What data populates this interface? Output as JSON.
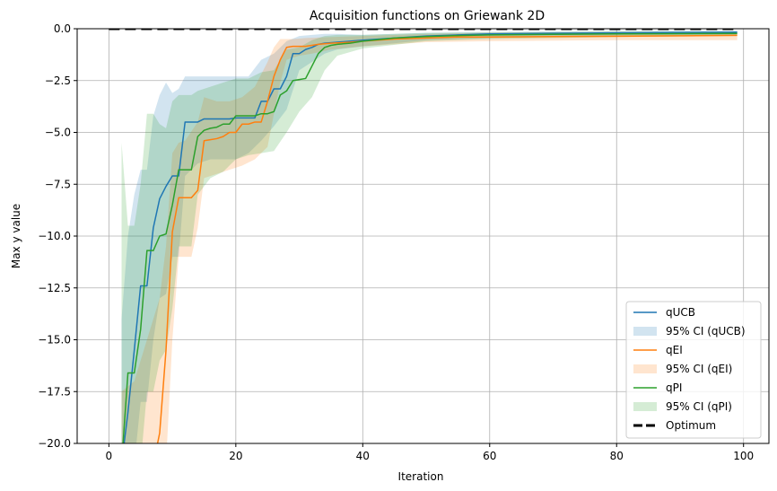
{
  "chart_data": {
    "type": "line",
    "title": "Acquisition functions on Griewank 2D",
    "xlabel": "Iteration",
    "ylabel": "Max y value",
    "xlim": [
      -5,
      104
    ],
    "ylim": [
      -20,
      0
    ],
    "xticks": [
      0,
      20,
      40,
      60,
      80,
      100
    ],
    "yticks": [
      0.0,
      -2.5,
      -5.0,
      -7.5,
      -10.0,
      -12.5,
      -15.0,
      -17.5,
      -20.0
    ],
    "xtick_labels": [
      "0",
      "20",
      "40",
      "60",
      "80",
      "100"
    ],
    "ytick_labels": [
      "0.0",
      "−2.5",
      "−5.0",
      "−7.5",
      "−10.0",
      "−12.5",
      "−15.0",
      "−17.5",
      "−20.0"
    ],
    "grid": true,
    "legend_position": "lower-right",
    "optimum": {
      "name": "Optimum",
      "value": 0,
      "x_range": [
        0,
        99
      ],
      "color": "#000000"
    },
    "series": [
      {
        "name": "qUCB",
        "ci_name": "95% CI (qUCB)",
        "color": "#1f77b4",
        "points": [
          [
            2,
            -21
          ],
          [
            3,
            -18.5
          ],
          [
            4,
            -15.5
          ],
          [
            5,
            -12.4
          ],
          [
            6,
            -12.4
          ],
          [
            7,
            -9.6
          ],
          [
            8,
            -8.2
          ],
          [
            9,
            -7.6
          ],
          [
            10,
            -7.1
          ],
          [
            11,
            -7.1
          ],
          [
            12,
            -4.5
          ],
          [
            13,
            -4.5
          ],
          [
            14,
            -4.5
          ],
          [
            15,
            -4.35
          ],
          [
            16,
            -4.35
          ],
          [
            17,
            -4.35
          ],
          [
            18,
            -4.35
          ],
          [
            19,
            -4.35
          ],
          [
            20,
            -4.3
          ],
          [
            21,
            -4.3
          ],
          [
            22,
            -4.3
          ],
          [
            23,
            -4.3
          ],
          [
            24,
            -3.5
          ],
          [
            25,
            -3.5
          ],
          [
            26,
            -2.9
          ],
          [
            27,
            -2.9
          ],
          [
            28,
            -2.3
          ],
          [
            29,
            -1.2
          ],
          [
            30,
            -1.2
          ],
          [
            31,
            -1.0
          ],
          [
            32,
            -0.9
          ],
          [
            33,
            -0.75
          ],
          [
            34,
            -0.7
          ],
          [
            36,
            -0.65
          ],
          [
            38,
            -0.6
          ],
          [
            40,
            -0.55
          ],
          [
            45,
            -0.45
          ],
          [
            50,
            -0.35
          ],
          [
            55,
            -0.3
          ],
          [
            60,
            -0.25
          ],
          [
            70,
            -0.22
          ],
          [
            80,
            -0.2
          ],
          [
            90,
            -0.18
          ],
          [
            99,
            -0.17
          ]
        ],
        "ci_upper": [
          [
            2,
            -14
          ],
          [
            3,
            -10
          ],
          [
            4,
            -8
          ],
          [
            5,
            -6.8
          ],
          [
            6,
            -6.8
          ],
          [
            7,
            -4.2
          ],
          [
            8,
            -3.2
          ],
          [
            9,
            -2.6
          ],
          [
            10,
            -3.1
          ],
          [
            11,
            -2.9
          ],
          [
            12,
            -2.3
          ],
          [
            14,
            -2.3
          ],
          [
            16,
            -2.3
          ],
          [
            18,
            -2.3
          ],
          [
            20,
            -2.3
          ],
          [
            22,
            -2.3
          ],
          [
            24,
            -1.5
          ],
          [
            26,
            -1.2
          ],
          [
            28,
            -0.6
          ],
          [
            30,
            -0.35
          ],
          [
            32,
            -0.3
          ],
          [
            34,
            -0.25
          ],
          [
            36,
            -0.25
          ],
          [
            40,
            -0.3
          ],
          [
            50,
            -0.2
          ],
          [
            60,
            -0.15
          ],
          [
            80,
            -0.1
          ],
          [
            99,
            -0.1
          ]
        ],
        "ci_lower": [
          [
            2,
            -21
          ],
          [
            3,
            -21
          ],
          [
            4,
            -21
          ],
          [
            5,
            -18
          ],
          [
            6,
            -18
          ],
          [
            7,
            -15
          ],
          [
            8,
            -13
          ],
          [
            9,
            -12.8
          ],
          [
            10,
            -11
          ],
          [
            11,
            -11
          ],
          [
            12,
            -7.1
          ],
          [
            14,
            -6.5
          ],
          [
            16,
            -6.3
          ],
          [
            18,
            -6.3
          ],
          [
            20,
            -6.3
          ],
          [
            22,
            -6.0
          ],
          [
            24,
            -5.4
          ],
          [
            26,
            -4.7
          ],
          [
            28,
            -3.9
          ],
          [
            30,
            -2.0
          ],
          [
            32,
            -1.6
          ],
          [
            34,
            -1.2
          ],
          [
            36,
            -1.0
          ],
          [
            40,
            -0.85
          ],
          [
            50,
            -0.55
          ],
          [
            60,
            -0.45
          ],
          [
            80,
            -0.35
          ],
          [
            99,
            -0.3
          ]
        ]
      },
      {
        "name": "qEI",
        "ci_name": "95% CI (qEI)",
        "color": "#ff7f0e",
        "points": [
          [
            7,
            -21
          ],
          [
            8,
            -19.5
          ],
          [
            9,
            -15.5
          ],
          [
            10,
            -9.8
          ],
          [
            11,
            -8.15
          ],
          [
            12,
            -8.15
          ],
          [
            13,
            -8.15
          ],
          [
            14,
            -7.8
          ],
          [
            15,
            -5.4
          ],
          [
            16,
            -5.35
          ],
          [
            17,
            -5.3
          ],
          [
            18,
            -5.2
          ],
          [
            19,
            -5.0
          ],
          [
            20,
            -5.0
          ],
          [
            21,
            -4.6
          ],
          [
            22,
            -4.6
          ],
          [
            23,
            -4.5
          ],
          [
            24,
            -4.5
          ],
          [
            25,
            -3.5
          ],
          [
            26,
            -2.3
          ],
          [
            27,
            -1.5
          ],
          [
            28,
            -0.9
          ],
          [
            29,
            -0.85
          ],
          [
            30,
            -0.85
          ],
          [
            31,
            -0.85
          ],
          [
            32,
            -0.8
          ],
          [
            33,
            -0.75
          ],
          [
            35,
            -0.7
          ],
          [
            38,
            -0.65
          ],
          [
            40,
            -0.6
          ],
          [
            45,
            -0.5
          ],
          [
            50,
            -0.45
          ],
          [
            55,
            -0.4
          ],
          [
            60,
            -0.4
          ],
          [
            70,
            -0.38
          ],
          [
            80,
            -0.36
          ],
          [
            90,
            -0.34
          ],
          [
            99,
            -0.32
          ]
        ],
        "ci_upper": [
          [
            2,
            -17.5
          ],
          [
            4,
            -17
          ],
          [
            6,
            -15
          ],
          [
            7,
            -14
          ],
          [
            8,
            -13
          ],
          [
            9,
            -10.5
          ],
          [
            10,
            -6
          ],
          [
            11,
            -5.5
          ],
          [
            12,
            -5.4
          ],
          [
            14,
            -4.5
          ],
          [
            15,
            -3.3
          ],
          [
            17,
            -3.5
          ],
          [
            19,
            -3.5
          ],
          [
            21,
            -3.3
          ],
          [
            23,
            -2.8
          ],
          [
            25,
            -1.6
          ],
          [
            26,
            -0.9
          ],
          [
            27,
            -0.5
          ],
          [
            29,
            -0.5
          ],
          [
            31,
            -0.45
          ],
          [
            35,
            -0.4
          ],
          [
            40,
            -0.35
          ],
          [
            50,
            -0.25
          ],
          [
            60,
            -0.2
          ],
          [
            80,
            -0.15
          ],
          [
            99,
            -0.15
          ]
        ],
        "ci_lower": [
          [
            2,
            -21
          ],
          [
            6,
            -21
          ],
          [
            8,
            -21
          ],
          [
            9,
            -21
          ],
          [
            10,
            -15
          ],
          [
            11,
            -11
          ],
          [
            12,
            -11
          ],
          [
            13,
            -11
          ],
          [
            14,
            -9.6
          ],
          [
            15,
            -7.2
          ],
          [
            17,
            -7.0
          ],
          [
            19,
            -6.8
          ],
          [
            21,
            -6.6
          ],
          [
            23,
            -6.3
          ],
          [
            25,
            -5.7
          ],
          [
            26,
            -4.1
          ],
          [
            27,
            -2.6
          ],
          [
            28,
            -1.5
          ],
          [
            30,
            -1.3
          ],
          [
            32,
            -1.2
          ],
          [
            35,
            -1.0
          ],
          [
            40,
            -0.85
          ],
          [
            50,
            -0.65
          ],
          [
            60,
            -0.6
          ],
          [
            80,
            -0.55
          ],
          [
            99,
            -0.55
          ]
        ]
      },
      {
        "name": "qPI",
        "ci_name": "95% CI (qPI)",
        "color": "#2ca02c",
        "points": [
          [
            2,
            -21
          ],
          [
            3,
            -16.6
          ],
          [
            4,
            -16.6
          ],
          [
            5,
            -14.5
          ],
          [
            6,
            -10.7
          ],
          [
            7,
            -10.7
          ],
          [
            8,
            -10.0
          ],
          [
            9,
            -9.9
          ],
          [
            10,
            -8.5
          ],
          [
            11,
            -6.8
          ],
          [
            12,
            -6.8
          ],
          [
            13,
            -6.8
          ],
          [
            14,
            -5.2
          ],
          [
            15,
            -4.9
          ],
          [
            16,
            -4.8
          ],
          [
            17,
            -4.75
          ],
          [
            18,
            -4.6
          ],
          [
            19,
            -4.6
          ],
          [
            20,
            -4.2
          ],
          [
            21,
            -4.2
          ],
          [
            22,
            -4.2
          ],
          [
            23,
            -4.2
          ],
          [
            24,
            -4.1
          ],
          [
            25,
            -4.1
          ],
          [
            26,
            -4.0
          ],
          [
            27,
            -3.2
          ],
          [
            28,
            -3.0
          ],
          [
            29,
            -2.5
          ],
          [
            30,
            -2.45
          ],
          [
            31,
            -2.4
          ],
          [
            32,
            -1.8
          ],
          [
            33,
            -1.2
          ],
          [
            34,
            -0.9
          ],
          [
            35,
            -0.8
          ],
          [
            36,
            -0.75
          ],
          [
            38,
            -0.7
          ],
          [
            40,
            -0.6
          ],
          [
            45,
            -0.45
          ],
          [
            50,
            -0.38
          ],
          [
            55,
            -0.33
          ],
          [
            60,
            -0.3
          ],
          [
            70,
            -0.27
          ],
          [
            80,
            -0.25
          ],
          [
            90,
            -0.24
          ],
          [
            99,
            -0.23
          ]
        ],
        "ci_upper": [
          [
            2,
            -5.5
          ],
          [
            3,
            -9.5
          ],
          [
            4,
            -9.5
          ],
          [
            5,
            -7.5
          ],
          [
            6,
            -4.1
          ],
          [
            7,
            -4.1
          ],
          [
            8,
            -4.6
          ],
          [
            9,
            -4.8
          ],
          [
            10,
            -3.5
          ],
          [
            11,
            -3.2
          ],
          [
            12,
            -3.2
          ],
          [
            13,
            -3.2
          ],
          [
            14,
            -3.0
          ],
          [
            16,
            -2.8
          ],
          [
            18,
            -2.6
          ],
          [
            20,
            -2.4
          ],
          [
            22,
            -2.4
          ],
          [
            24,
            -2.1
          ],
          [
            26,
            -2.0
          ],
          [
            28,
            -1.0
          ],
          [
            30,
            -0.9
          ],
          [
            32,
            -0.55
          ],
          [
            34,
            -0.35
          ],
          [
            36,
            -0.3
          ],
          [
            40,
            -0.3
          ],
          [
            50,
            -0.2
          ],
          [
            60,
            -0.18
          ],
          [
            80,
            -0.14
          ],
          [
            99,
            -0.13
          ]
        ],
        "ci_lower": [
          [
            2,
            -21
          ],
          [
            3,
            -21
          ],
          [
            4,
            -21
          ],
          [
            5,
            -21
          ],
          [
            6,
            -17.5
          ],
          [
            7,
            -17.5
          ],
          [
            8,
            -16
          ],
          [
            9,
            -15.5
          ],
          [
            10,
            -13.5
          ],
          [
            11,
            -10.5
          ],
          [
            12,
            -10.5
          ],
          [
            13,
            -10.5
          ],
          [
            14,
            -8.0
          ],
          [
            16,
            -7.2
          ],
          [
            18,
            -6.9
          ],
          [
            20,
            -6.3
          ],
          [
            22,
            -6.1
          ],
          [
            24,
            -6.0
          ],
          [
            26,
            -5.9
          ],
          [
            28,
            -5.0
          ],
          [
            30,
            -4.0
          ],
          [
            32,
            -3.3
          ],
          [
            34,
            -2.0
          ],
          [
            36,
            -1.3
          ],
          [
            40,
            -0.95
          ],
          [
            50,
            -0.6
          ],
          [
            60,
            -0.5
          ],
          [
            80,
            -0.4
          ],
          [
            99,
            -0.35
          ]
        ]
      }
    ]
  }
}
